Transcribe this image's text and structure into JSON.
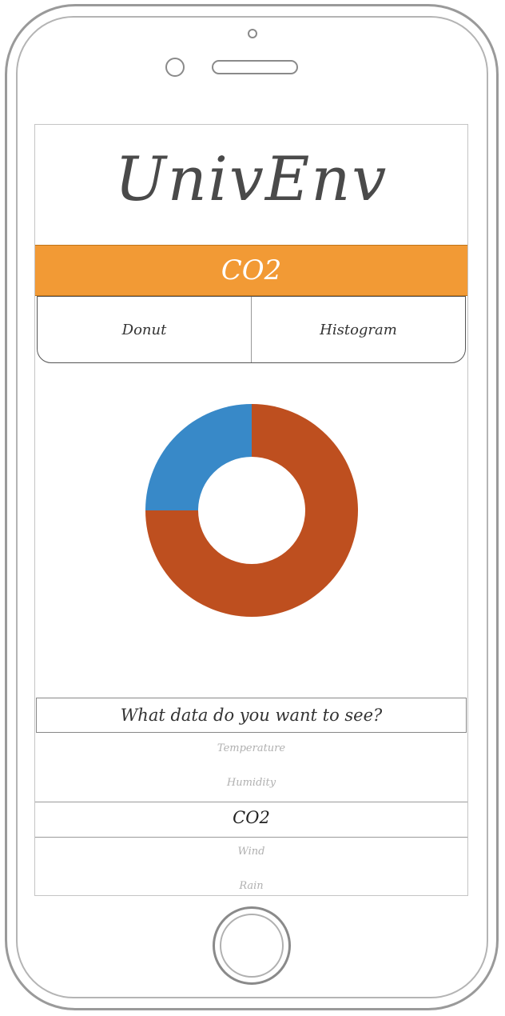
{
  "app": {
    "title": "UnivEnv"
  },
  "banner": {
    "label": "CO2"
  },
  "tabs": [
    {
      "label": "Donut"
    },
    {
      "label": "Histogram"
    }
  ],
  "chart_data": {
    "type": "pie",
    "variant": "donut",
    "slices": [
      {
        "value": 75,
        "color": "#be4f1f"
      },
      {
        "value": 25,
        "color": "#3889c8"
      }
    ],
    "colors": {
      "primary": "#be4f1f",
      "secondary": "#3889c8"
    }
  },
  "picker": {
    "question": "What data do you want to see?",
    "options": [
      {
        "label": "Temperature"
      },
      {
        "label": "Humidity"
      },
      {
        "label": "CO2"
      },
      {
        "label": "Wind"
      },
      {
        "label": "Rain"
      }
    ],
    "selected": "CO2"
  },
  "theme": {
    "accent": "#f29a35"
  }
}
